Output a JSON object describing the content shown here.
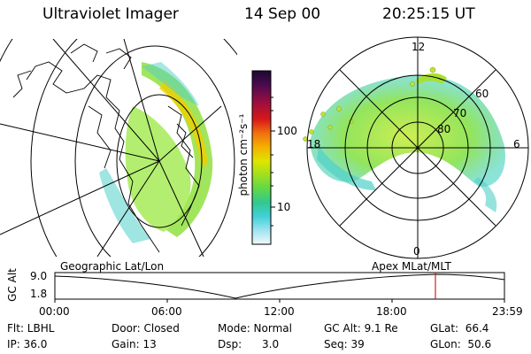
{
  "header": {
    "instrument": "Ultraviolet Imager",
    "date": "14 Sep 00",
    "time": "20:25:15 UT"
  },
  "colorbar": {
    "unit_label": "photon cm⁻²s⁻¹",
    "ticks": [
      "100",
      "10"
    ],
    "colors": [
      "#1a0a2e",
      "#3c0a4a",
      "#6a0c50",
      "#9a0e40",
      "#c81a20",
      "#e85a10",
      "#f5a000",
      "#f0d000",
      "#d8e800",
      "#a8e018",
      "#70d838",
      "#40d070",
      "#30c8b8",
      "#60d8e0",
      "#a8e8f0",
      "#e0f4f8"
    ]
  },
  "left_panel": {
    "label": "Geographic Lat/Lon"
  },
  "right_panel": {
    "label": "Apex MLat/MLT",
    "mlt_labels": [
      "12",
      "18",
      "6",
      "0"
    ],
    "lat_labels": [
      "60",
      "70",
      "80"
    ]
  },
  "altitude_strip": {
    "axis_label": "GC Alt",
    "y_ticks": [
      "9.0",
      "1.8"
    ],
    "x_ticks": [
      "00:00",
      "06:00",
      "12:00",
      "18:00",
      "23:59"
    ],
    "marker_color": "#d02020"
  },
  "info": {
    "flt": "Flt: LBHL",
    "door": "Door: Closed",
    "mode": "Mode: Normal",
    "gcalt": "GC Alt: 9.1 Re",
    "glat": "GLat:  66.4",
    "ip": "IP: 36.0",
    "gain": "Gain: 13",
    "dsp": "Dsp:      3.0",
    "seq": "Seq: 39",
    "glon": "GLon:  50.6"
  }
}
